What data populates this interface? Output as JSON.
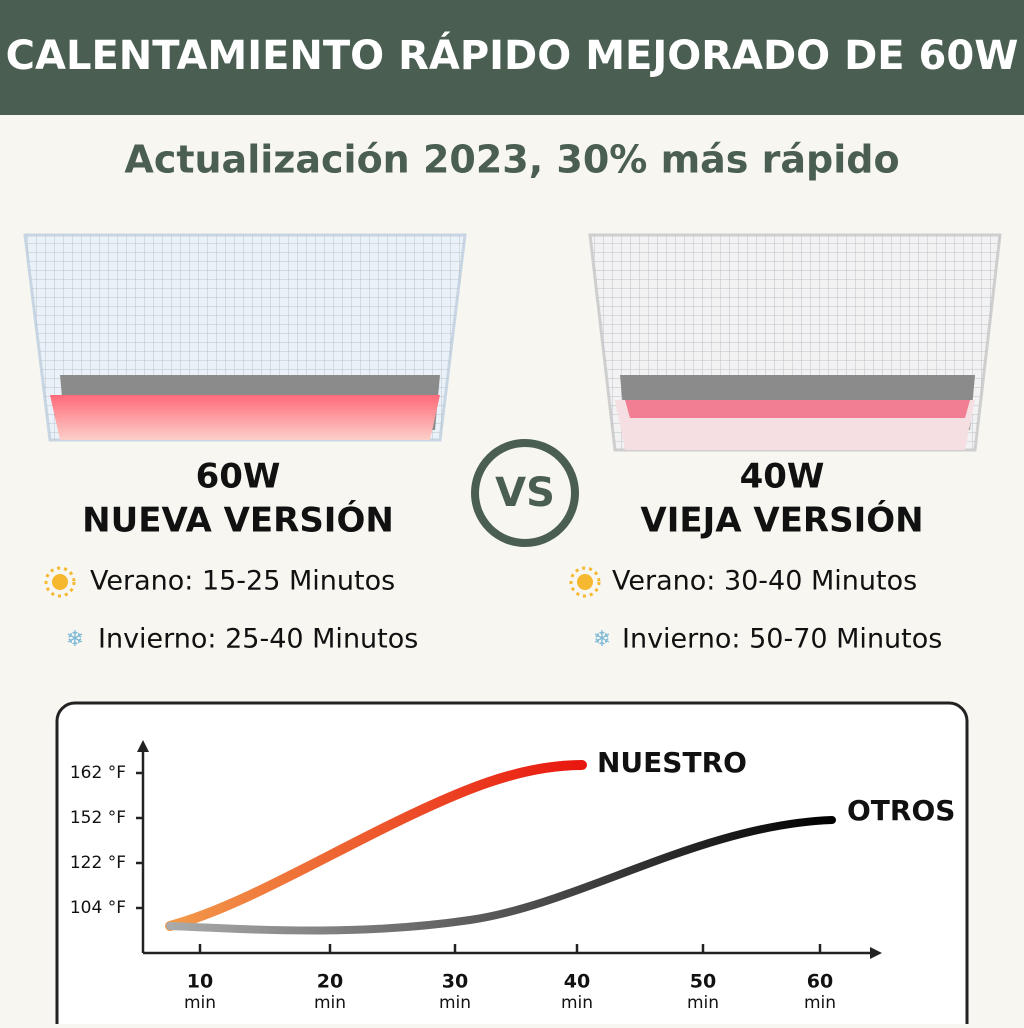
{
  "header": {
    "title": "CALENTAMIENTO RÁPIDO MEJORADO DE 60W"
  },
  "subtitle": "Actualización 2023, 30% más rápido",
  "products": [
    {
      "power": "60W",
      "name": "NUEVA VERSIÓN",
      "summer": "Verano: 15-25 Minutos",
      "winter": "Invierno: 25-40 Minutos"
    },
    {
      "power": "40W",
      "name": "VIEJA VERSIÓN",
      "summer": "Verano: 30-40 Minutos",
      "winter": "Invierno: 50-70 Minutos"
    }
  ],
  "vs": "VS",
  "chart": {
    "y_labels": [
      "162 °F",
      "152 °F",
      "122 °F",
      "104 °F"
    ],
    "x_labels": [
      "10",
      "20",
      "30",
      "40",
      "50",
      "60"
    ],
    "x_unit": "min",
    "series": [
      "NUESTRO",
      "OTROS"
    ]
  }
}
